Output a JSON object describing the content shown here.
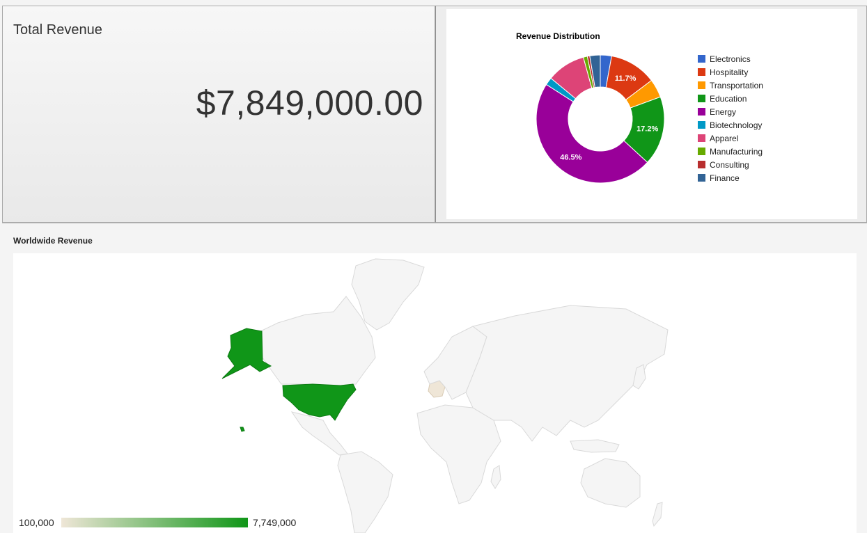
{
  "total_revenue": {
    "title": "Total Revenue",
    "value": "$7,849,000.00"
  },
  "chart_data": [
    {
      "type": "pie",
      "style": "donut",
      "title": "Revenue Distribution",
      "categories": [
        "Electronics",
        "Hospitality",
        "Transportation",
        "Education",
        "Energy",
        "Biotechnology",
        "Apparel",
        "Manufacturing",
        "Consulting",
        "Finance"
      ],
      "values": [
        2.8,
        11.7,
        4.6,
        17.2,
        46.5,
        1.9,
        9.6,
        1.0,
        0.6,
        2.6
      ],
      "colors": [
        "#3366cc",
        "#dc3912",
        "#ff9900",
        "#109618",
        "#990099",
        "#0099c6",
        "#dd4477",
        "#66aa00",
        "#b82e2e",
        "#316395"
      ],
      "slice_labels": [
        "",
        "11.7%",
        "",
        "17.2%",
        "46.5%",
        "",
        "",
        "",
        "",
        ""
      ],
      "legend_position": "right"
    },
    {
      "type": "heatmap",
      "style": "geo-map",
      "title": "Worldwide Revenue",
      "regions": [
        {
          "name": "United States",
          "value": 7749000
        },
        {
          "name": "France",
          "value": 100000
        }
      ],
      "color_axis": {
        "min": 100000,
        "max": 7749000,
        "min_label": "100,000",
        "max_label": "7,749,000",
        "min_color": "#efe6d7",
        "max_color": "#109618"
      },
      "no_data_color": "#f5f5f5"
    }
  ]
}
